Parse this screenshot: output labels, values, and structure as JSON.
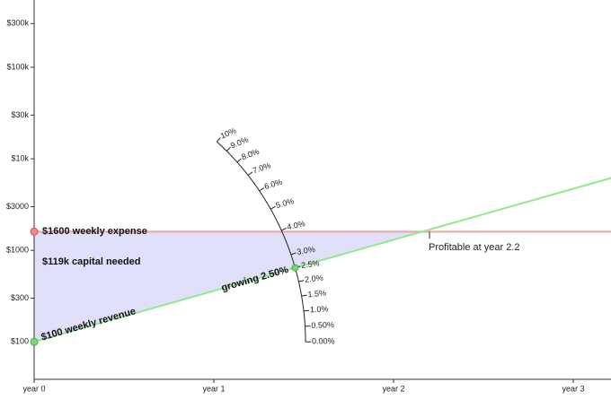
{
  "chart_data": {
    "type": "line",
    "xticks": [
      {
        "value": 0,
        "label": "year 0"
      },
      {
        "value": 1,
        "label": "year 1"
      },
      {
        "value": 2,
        "label": "year 2"
      },
      {
        "value": 3,
        "label": "year 3"
      }
    ],
    "xlim": [
      0,
      3.21
    ],
    "yscale": "log",
    "ylim": [
      39,
      543000
    ],
    "yticks": [
      {
        "value": 100,
        "label": "$100"
      },
      {
        "value": 300,
        "label": "$300"
      },
      {
        "value": 1000,
        "label": "$1000"
      },
      {
        "value": 3000,
        "label": "$3000"
      },
      {
        "value": 10000,
        "label": "$10k"
      },
      {
        "value": 30000,
        "label": "$30k"
      },
      {
        "value": 100000,
        "label": "$100k"
      },
      {
        "value": 300000,
        "label": "$300k"
      }
    ],
    "weekly_expense": 1600,
    "expense_label": "$1600 weekly expense",
    "expense_color": "#f2a29b",
    "weekly_revenue": 100,
    "revenue_label": "$100 weekly revenue",
    "revenue_color": "#90e98b",
    "growth_rate": 2.5,
    "growth_label": "growing 2.50%",
    "capital_needed": 119,
    "capital_label": "$119k capital needed",
    "capital_color": "#e0e0fb",
    "breakeven_year": 2.2,
    "breakeven_label": "Profitable at year 2.2",
    "dial_ticks": [
      {
        "value": 0,
        "label": "0.00%"
      },
      {
        "value": 0.5,
        "label": "0.50%"
      },
      {
        "value": 1,
        "label": "1.0%"
      },
      {
        "value": 1.5,
        "label": "1.5%"
      },
      {
        "value": 2,
        "label": "2.0%"
      },
      {
        "value": 2.5,
        "label": "2.5%"
      },
      {
        "value": 3,
        "label": "3.0%"
      },
      {
        "value": 4,
        "label": "4.0%"
      },
      {
        "value": 5,
        "label": "5.0%"
      },
      {
        "value": 6,
        "label": "6.0%"
      },
      {
        "value": 7,
        "label": "7.0%"
      },
      {
        "value": 8,
        "label": "8.0%"
      },
      {
        "value": 9,
        "label": "9.0%"
      },
      {
        "value": 10,
        "label": "10%"
      }
    ]
  }
}
